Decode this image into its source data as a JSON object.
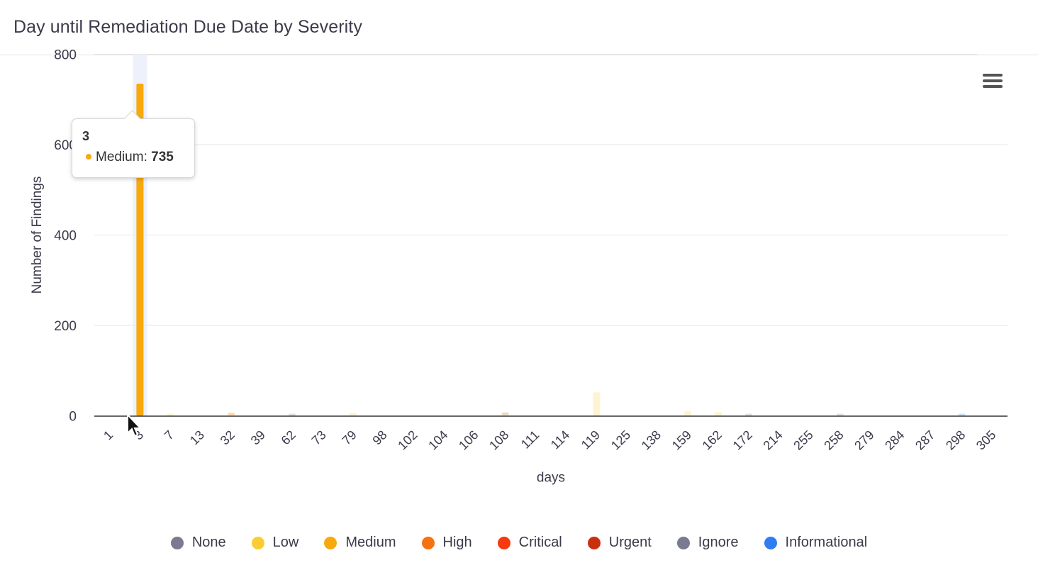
{
  "header": {
    "title": "Day until Remediation Due Date by Severity"
  },
  "menu": {
    "icon": "hamburger-menu-icon"
  },
  "tooltip": {
    "category": "3",
    "series": "Medium",
    "value": "735",
    "color": "#f8a90d"
  },
  "legend": [
    {
      "label": "None",
      "color": "#7a7a92"
    },
    {
      "label": "Low",
      "color": "#fbcd34"
    },
    {
      "label": "Medium",
      "color": "#f8a90d"
    },
    {
      "label": "High",
      "color": "#f5720e"
    },
    {
      "label": "Critical",
      "color": "#f53a0f"
    },
    {
      "label": "Urgent",
      "color": "#c9300e"
    },
    {
      "label": "Ignore",
      "color": "#7a7a92"
    },
    {
      "label": "Informational",
      "color": "#2f7cf5"
    }
  ],
  "chart_data": {
    "type": "bar",
    "title": "Day until Remediation Due Date by Severity",
    "xlabel": "days",
    "ylabel": "Number of Findings",
    "ylim": [
      0,
      800
    ],
    "yticks": [
      0,
      200,
      400,
      600,
      800
    ],
    "grid": true,
    "legend_position": "bottom",
    "categories": [
      "1",
      "3",
      "7",
      "13",
      "32",
      "39",
      "62",
      "73",
      "79",
      "98",
      "102",
      "104",
      "106",
      "108",
      "111",
      "114",
      "119",
      "125",
      "138",
      "159",
      "162",
      "172",
      "214",
      "255",
      "258",
      "279",
      "284",
      "287",
      "298",
      "305"
    ],
    "series": [
      {
        "name": "None",
        "color": "#7a7a92",
        "values": [
          0,
          0,
          0,
          0,
          0,
          0,
          3,
          0,
          0,
          0,
          0,
          0,
          0,
          0,
          0,
          0,
          0,
          0,
          0,
          0,
          0,
          0,
          0,
          0,
          0,
          0,
          0,
          0,
          0,
          0
        ]
      },
      {
        "name": "Low",
        "color": "#fbcd34",
        "values": [
          0,
          0,
          2,
          0,
          2,
          0,
          0,
          0,
          6,
          0,
          0,
          0,
          0,
          0,
          0,
          0,
          52,
          0,
          0,
          10,
          8,
          0,
          0,
          0,
          0,
          0,
          0,
          0,
          0,
          0
        ]
      },
      {
        "name": "Medium",
        "color": "#f8a90d",
        "values": [
          0,
          735,
          0,
          0,
          0,
          0,
          0,
          0,
          0,
          0,
          0,
          0,
          0,
          3,
          0,
          0,
          0,
          0,
          0,
          0,
          0,
          0,
          0,
          0,
          0,
          0,
          0,
          0,
          0,
          0
        ]
      },
      {
        "name": "High",
        "color": "#f5720e",
        "values": [
          0,
          0,
          0,
          0,
          5,
          0,
          0,
          0,
          0,
          0,
          0,
          0,
          0,
          0,
          0,
          0,
          0,
          0,
          0,
          0,
          0,
          0,
          0,
          0,
          0,
          0,
          0,
          0,
          0,
          0
        ]
      },
      {
        "name": "Critical",
        "color": "#f53a0f",
        "values": [
          0,
          0,
          0,
          0,
          0,
          0,
          0,
          0,
          0,
          0,
          0,
          0,
          0,
          0,
          0,
          0,
          0,
          0,
          0,
          0,
          0,
          0,
          0,
          0,
          0,
          0,
          0,
          0,
          0,
          0
        ]
      },
      {
        "name": "Urgent",
        "color": "#c9300e",
        "values": [
          0,
          0,
          0,
          0,
          0,
          0,
          0,
          0,
          0,
          0,
          0,
          0,
          0,
          0,
          0,
          0,
          0,
          0,
          0,
          0,
          0,
          0,
          0,
          0,
          0,
          0,
          0,
          0,
          0,
          0
        ]
      },
      {
        "name": "Ignore",
        "color": "#7a7a92",
        "values": [
          0,
          0,
          0,
          0,
          0,
          0,
          0,
          0,
          0,
          0,
          0,
          0,
          0,
          2,
          0,
          0,
          0,
          0,
          0,
          0,
          0,
          2,
          0,
          0,
          2,
          0,
          0,
          0,
          0,
          0
        ]
      },
      {
        "name": "Informational",
        "color": "#2f7cf5",
        "values": [
          0,
          0,
          0,
          0,
          0,
          0,
          0,
          0,
          0,
          0,
          0,
          0,
          0,
          0,
          0,
          0,
          0,
          0,
          0,
          0,
          0,
          0,
          0,
          0,
          0,
          0,
          0,
          0,
          3,
          0
        ]
      }
    ]
  }
}
